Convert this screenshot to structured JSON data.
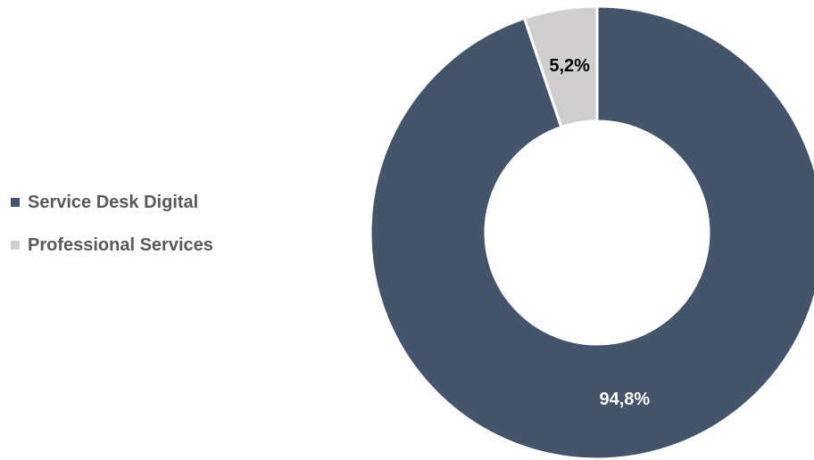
{
  "chart_data": {
    "type": "pie",
    "donut": true,
    "slices": [
      {
        "name": "Service Desk Digital",
        "value": 94.8,
        "label": "94,8%",
        "color": "#44546a",
        "label_color": "#ffffff"
      },
      {
        "name": "Professional Services",
        "value": 5.2,
        "label": "5,2%",
        "color": "#d0cece",
        "label_color": "#000000"
      }
    ],
    "legend": {
      "placement": "left",
      "items": [
        {
          "label": "Service Desk Digital",
          "color": "#44546a"
        },
        {
          "label": "Professional Services",
          "color": "#d0cece"
        }
      ]
    }
  }
}
